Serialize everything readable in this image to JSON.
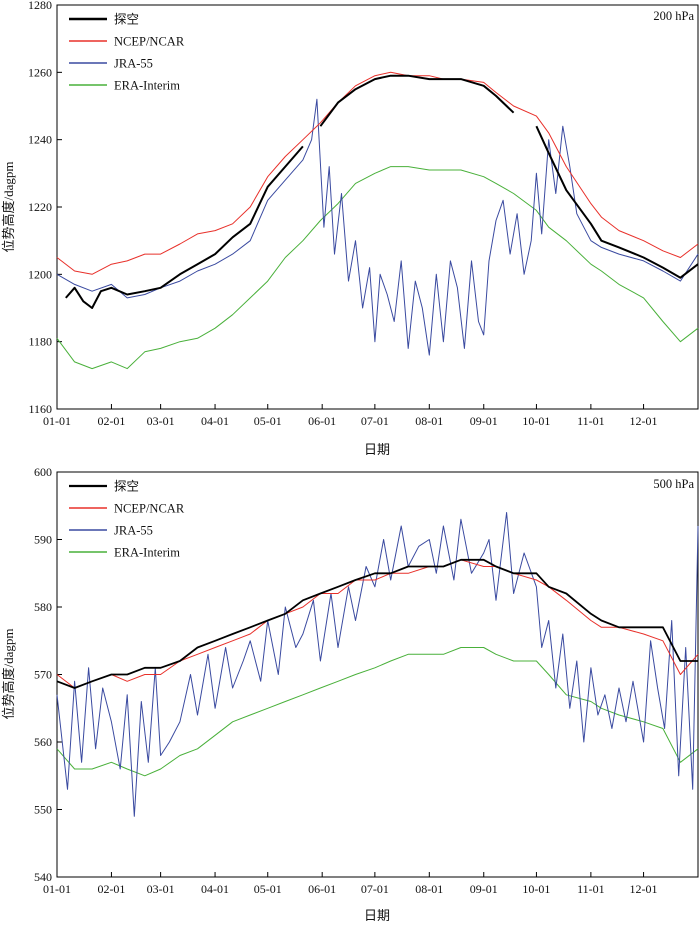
{
  "chart_data": [
    {
      "type": "line",
      "panel_label": "200 hPa",
      "xlabel": "日期",
      "ylabel": "位势高度/dagpm",
      "x_ticks": [
        "01-01",
        "02-01",
        "03-01",
        "04-01",
        "05-01",
        "06-01",
        "07-01",
        "08-01",
        "09-01",
        "10-01",
        "11-01",
        "12-01"
      ],
      "x_tick_days": [
        0,
        31,
        59,
        90,
        120,
        151,
        181,
        212,
        243,
        273,
        304,
        334
      ],
      "xlim": [
        0,
        365
      ],
      "ylim": [
        1160,
        1280
      ],
      "y_ticks": [
        1160,
        1180,
        1200,
        1220,
        1240,
        1260,
        1280
      ],
      "legend_position": "top-left",
      "series": [
        {
          "name": "探空",
          "color": "#000000",
          "width": 2.0,
          "x": [
            5,
            10,
            15,
            20,
            25,
            31,
            40,
            50,
            59,
            70,
            80,
            90,
            100,
            110,
            120,
            130,
            140,
            150,
            160,
            170,
            181,
            190,
            200,
            212,
            220,
            230,
            243,
            250,
            260,
            273,
            280,
            290,
            304,
            310,
            320,
            334,
            345,
            355,
            365
          ],
          "values": [
            1193,
            1196,
            1192,
            1190,
            1195,
            1196,
            1194,
            1195,
            1196,
            1200,
            1203,
            1206,
            1211,
            1215,
            1226,
            1232,
            1238,
            1244,
            1251,
            1255,
            1258,
            1259,
            1259,
            1258,
            1258,
            1258,
            1256,
            1253,
            1248,
            1244,
            1236,
            1225,
            1215,
            1210,
            1208,
            1205,
            1202,
            1199,
            1203
          ],
          "gaps": [
            [
              144,
              150
            ],
            [
              260,
              262
            ]
          ]
        },
        {
          "name": "NCEP/NCAR",
          "color": "#e8302a",
          "width": 1.0,
          "x": [
            0,
            10,
            20,
            31,
            40,
            50,
            59,
            70,
            80,
            90,
            100,
            110,
            120,
            130,
            140,
            150,
            160,
            170,
            181,
            190,
            200,
            212,
            220,
            230,
            243,
            250,
            260,
            273,
            280,
            290,
            304,
            310,
            320,
            334,
            345,
            355,
            365
          ],
          "values": [
            1205,
            1201,
            1200,
            1203,
            1204,
            1206,
            1206,
            1209,
            1212,
            1213,
            1215,
            1220,
            1229,
            1235,
            1240,
            1245,
            1251,
            1256,
            1259,
            1260,
            1259,
            1259,
            1258,
            1258,
            1257,
            1254,
            1250,
            1247,
            1242,
            1232,
            1221,
            1217,
            1213,
            1210,
            1207,
            1205,
            1209
          ]
        },
        {
          "name": "JRA-55",
          "color": "#3a4aa0",
          "width": 1.0,
          "x": [
            0,
            10,
            20,
            31,
            40,
            50,
            59,
            70,
            80,
            90,
            100,
            110,
            120,
            130,
            140,
            145,
            148,
            152,
            155,
            158,
            162,
            166,
            170,
            174,
            178,
            181,
            184,
            188,
            192,
            196,
            200,
            204,
            208,
            212,
            216,
            220,
            224,
            228,
            232,
            236,
            240,
            243,
            246,
            250,
            254,
            258,
            262,
            266,
            270,
            273,
            276,
            280,
            284,
            288,
            292,
            296,
            300,
            304,
            310,
            320,
            334,
            345,
            355,
            365
          ],
          "values": [
            1200,
            1197,
            1195,
            1197,
            1193,
            1194,
            1196,
            1198,
            1201,
            1203,
            1206,
            1210,
            1222,
            1228,
            1234,
            1240,
            1252,
            1214,
            1232,
            1206,
            1224,
            1198,
            1210,
            1190,
            1202,
            1180,
            1200,
            1194,
            1186,
            1204,
            1178,
            1198,
            1190,
            1176,
            1200,
            1180,
            1204,
            1196,
            1178,
            1204,
            1186,
            1182,
            1204,
            1216,
            1222,
            1206,
            1218,
            1200,
            1210,
            1230,
            1212,
            1240,
            1224,
            1244,
            1232,
            1218,
            1214,
            1210,
            1208,
            1206,
            1204,
            1201,
            1198,
            1206
          ]
        },
        {
          "name": "ERA-Interim",
          "color": "#49b03a",
          "width": 1.0,
          "x": [
            0,
            10,
            20,
            31,
            40,
            50,
            59,
            70,
            80,
            90,
            100,
            110,
            120,
            130,
            140,
            150,
            160,
            170,
            181,
            190,
            200,
            212,
            220,
            230,
            243,
            250,
            260,
            273,
            280,
            290,
            304,
            310,
            320,
            334,
            345,
            355,
            365
          ],
          "values": [
            1181,
            1174,
            1172,
            1174,
            1172,
            1177,
            1178,
            1180,
            1181,
            1184,
            1188,
            1193,
            1198,
            1205,
            1210,
            1216,
            1221,
            1227,
            1230,
            1232,
            1232,
            1231,
            1231,
            1231,
            1229,
            1227,
            1224,
            1219,
            1214,
            1210,
            1203,
            1201,
            1197,
            1193,
            1186,
            1180,
            1184
          ]
        }
      ]
    },
    {
      "type": "line",
      "panel_label": "500 hPa",
      "xlabel": "日期",
      "ylabel": "位势高度/dagpm",
      "x_ticks": [
        "01-01",
        "02-01",
        "03-01",
        "04-01",
        "05-01",
        "06-01",
        "07-01",
        "08-01",
        "09-01",
        "10-01",
        "11-01",
        "12-01"
      ],
      "x_tick_days": [
        0,
        31,
        59,
        90,
        120,
        151,
        181,
        212,
        243,
        273,
        304,
        334
      ],
      "xlim": [
        0,
        365
      ],
      "ylim": [
        540,
        600
      ],
      "y_ticks": [
        540,
        550,
        560,
        570,
        580,
        590,
        600
      ],
      "legend_position": "top-left",
      "series": [
        {
          "name": "探空",
          "color": "#000000",
          "width": 1.8,
          "x": [
            0,
            10,
            20,
            31,
            40,
            50,
            59,
            70,
            80,
            90,
            100,
            110,
            120,
            130,
            140,
            150,
            160,
            170,
            181,
            190,
            200,
            212,
            220,
            230,
            243,
            250,
            260,
            273,
            280,
            290,
            304,
            310,
            320,
            334,
            345,
            355,
            365
          ],
          "values": [
            569,
            568,
            569,
            570,
            570,
            571,
            571,
            572,
            574,
            575,
            576,
            577,
            578,
            579,
            581,
            582,
            583,
            584,
            585,
            585,
            586,
            586,
            586,
            587,
            587,
            586,
            585,
            585,
            583,
            582,
            579,
            578,
            577,
            577,
            577,
            572,
            572
          ]
        },
        {
          "name": "NCEP/NCAR",
          "color": "#e8302a",
          "width": 1.0,
          "x": [
            0,
            10,
            20,
            31,
            40,
            50,
            59,
            70,
            80,
            90,
            100,
            110,
            120,
            130,
            140,
            150,
            160,
            170,
            181,
            190,
            200,
            212,
            220,
            230,
            243,
            250,
            260,
            273,
            280,
            290,
            304,
            310,
            320,
            334,
            345,
            355,
            365
          ],
          "values": [
            570,
            568,
            569,
            570,
            569,
            570,
            570,
            572,
            573,
            574,
            575,
            576,
            578,
            579,
            580,
            582,
            582,
            584,
            584,
            585,
            585,
            586,
            586,
            587,
            586,
            586,
            585,
            584,
            583,
            581,
            578,
            577,
            577,
            576,
            575,
            570,
            573
          ]
        },
        {
          "name": "JRA-55",
          "color": "#3a4aa0",
          "width": 1.0,
          "x": [
            0,
            6,
            10,
            14,
            18,
            22,
            26,
            31,
            36,
            40,
            44,
            48,
            52,
            56,
            59,
            64,
            70,
            76,
            80,
            86,
            90,
            96,
            100,
            106,
            110,
            116,
            120,
            126,
            130,
            136,
            140,
            146,
            150,
            156,
            160,
            166,
            170,
            176,
            181,
            186,
            190,
            196,
            200,
            206,
            212,
            216,
            220,
            226,
            230,
            236,
            243,
            246,
            250,
            256,
            260,
            266,
            273,
            276,
            280,
            284,
            288,
            292,
            296,
            300,
            304,
            308,
            312,
            316,
            320,
            324,
            328,
            334,
            338,
            342,
            346,
            350,
            354,
            358,
            362,
            365
          ],
          "values": [
            567,
            553,
            569,
            557,
            571,
            559,
            568,
            563,
            556,
            567,
            549,
            566,
            557,
            571,
            558,
            560,
            563,
            570,
            564,
            573,
            565,
            574,
            568,
            572,
            575,
            569,
            578,
            570,
            580,
            574,
            576,
            581,
            572,
            582,
            574,
            583,
            578,
            586,
            583,
            590,
            584,
            592,
            586,
            589,
            590,
            585,
            592,
            584,
            593,
            585,
            588,
            590,
            581,
            594,
            582,
            588,
            583,
            574,
            578,
            568,
            576,
            565,
            572,
            560,
            571,
            564,
            567,
            562,
            568,
            563,
            569,
            560,
            575,
            568,
            562,
            578,
            555,
            574,
            553,
            592
          ]
        },
        {
          "name": "ERA-Interim",
          "color": "#49b03a",
          "width": 1.0,
          "x": [
            0,
            10,
            20,
            31,
            40,
            50,
            59,
            70,
            80,
            90,
            100,
            110,
            120,
            130,
            140,
            150,
            160,
            170,
            181,
            190,
            200,
            212,
            220,
            230,
            243,
            250,
            260,
            273,
            280,
            290,
            304,
            310,
            320,
            334,
            345,
            355,
            365
          ],
          "values": [
            559,
            556,
            556,
            557,
            556,
            555,
            556,
            558,
            559,
            561,
            563,
            564,
            565,
            566,
            567,
            568,
            569,
            570,
            571,
            572,
            573,
            573,
            573,
            574,
            574,
            573,
            572,
            572,
            570,
            567,
            566,
            565,
            564,
            563,
            562,
            557,
            559
          ]
        }
      ]
    }
  ]
}
